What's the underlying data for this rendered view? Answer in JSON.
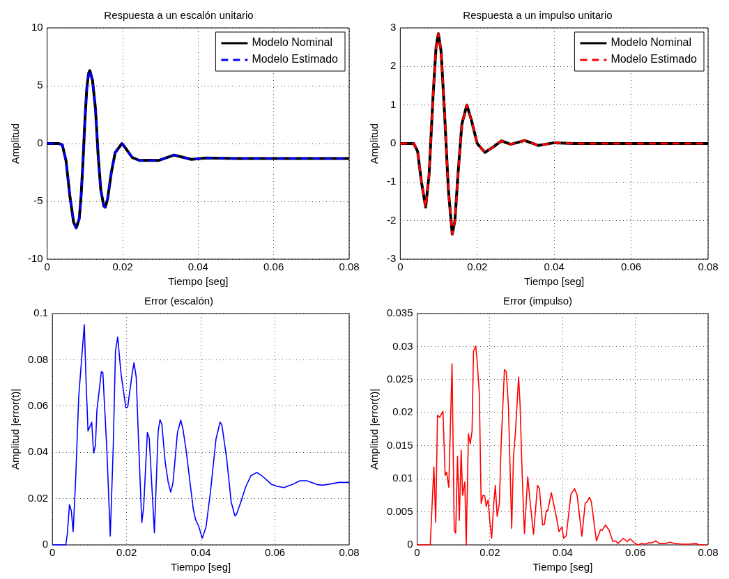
{
  "chart_data": [
    {
      "type": "line",
      "title": "Respuesta a un escalón unitario",
      "xlabel": "Tiempo [seg]",
      "ylabel": "Amplitud",
      "xlim": [
        0,
        0.08
      ],
      "ylim": [
        -10,
        10
      ],
      "xticks": [
        0,
        0.02,
        0.04,
        0.06,
        0.08
      ],
      "yticks": [
        -10,
        -5,
        0,
        5,
        10
      ],
      "grid": true,
      "legend": "top right",
      "x": [
        0,
        0.003,
        0.004,
        0.005,
        0.006,
        0.007,
        0.0077,
        0.0085,
        0.009,
        0.0095,
        0.01,
        0.0105,
        0.011,
        0.0113,
        0.012,
        0.0128,
        0.0135,
        0.0142,
        0.015,
        0.0154,
        0.016,
        0.017,
        0.018,
        0.0198,
        0.021,
        0.0225,
        0.0244,
        0.027,
        0.0296,
        0.0336,
        0.0382,
        0.042,
        0.05,
        0.06,
        0.08
      ],
      "series": [
        {
          "name": "Modelo Nominal",
          "color": "#000000",
          "line_style": "solid",
          "values": [
            0,
            0,
            -0.1,
            -1.5,
            -4.5,
            -6.8,
            -7.3,
            -6.5,
            -4.5,
            -1.5,
            2,
            4.8,
            6.1,
            6.3,
            5.5,
            3,
            -1,
            -4,
            -5.4,
            -5.5,
            -4.8,
            -2.5,
            -0.8,
            0,
            -0.5,
            -1.2,
            -1.46,
            -1.45,
            -1.46,
            -1.0,
            -1.37,
            -1.25,
            -1.3,
            -1.3,
            -1.3
          ]
        },
        {
          "name": "Modelo Estimado",
          "color": "#0000ff",
          "line_style": "dashed",
          "values": [
            0,
            0,
            -0.1,
            -1.5,
            -4.5,
            -6.8,
            -7.3,
            -6.5,
            -4.5,
            -1.5,
            2,
            4.8,
            6.1,
            6.3,
            5.5,
            3,
            -1,
            -4,
            -5.4,
            -5.5,
            -4.8,
            -2.5,
            -0.8,
            0,
            -0.5,
            -1.2,
            -1.46,
            -1.45,
            -1.46,
            -1.0,
            -1.37,
            -1.25,
            -1.3,
            -1.3,
            -1.3
          ]
        }
      ]
    },
    {
      "type": "line",
      "title": "Respuesta a un impulso unitario",
      "xlabel": "Tiempo [seg]",
      "ylabel": "Amplitud",
      "xlim": [
        0,
        0.08
      ],
      "ylim": [
        -3,
        3
      ],
      "xticks": [
        0,
        0.02,
        0.04,
        0.06,
        0.08
      ],
      "yticks": [
        -3,
        -2,
        -1,
        0,
        1,
        2,
        3
      ],
      "grid": true,
      "legend": "top right",
      "x": [
        0,
        0.0035,
        0.0045,
        0.0055,
        0.0066,
        0.0075,
        0.0085,
        0.0093,
        0.0099,
        0.0106,
        0.0115,
        0.0125,
        0.0135,
        0.0142,
        0.015,
        0.016,
        0.0173,
        0.0185,
        0.02,
        0.022,
        0.024,
        0.0263,
        0.0287,
        0.0323,
        0.0359,
        0.04,
        0.045,
        0.08
      ],
      "series": [
        {
          "name": "Modelo Nominal",
          "color": "#000000",
          "line_style": "solid",
          "values": [
            0,
            0,
            -0.2,
            -1.0,
            -1.65,
            -0.8,
            1.2,
            2.5,
            2.85,
            2.4,
            0.8,
            -1.2,
            -2.35,
            -2.0,
            -0.8,
            0.5,
            1.0,
            0.6,
            0,
            -0.23,
            -0.1,
            0.07,
            -0.02,
            0.08,
            -0.05,
            0.02,
            0,
            0
          ]
        },
        {
          "name": "Modelo Estimado",
          "color": "#ff0000",
          "line_style": "dashed",
          "values": [
            0,
            0,
            -0.2,
            -1.0,
            -1.65,
            -0.8,
            1.2,
            2.5,
            2.85,
            2.4,
            0.8,
            -1.2,
            -2.35,
            -2.0,
            -0.8,
            0.5,
            1.0,
            0.6,
            0,
            -0.23,
            -0.1,
            0.07,
            -0.02,
            0.08,
            -0.05,
            0.02,
            0,
            0
          ]
        }
      ]
    },
    {
      "type": "line",
      "title": "Error (escalón)",
      "xlabel": "Tiempo [seg]",
      "ylabel": "Amplitud |error(t)|",
      "xlim": [
        0,
        0.08
      ],
      "ylim": [
        0,
        0.1
      ],
      "xticks": [
        0,
        0.02,
        0.04,
        0.06,
        0.08
      ],
      "yticks": [
        0,
        0.02,
        0.04,
        0.06,
        0.08,
        0.1
      ],
      "grid": true,
      "x": [
        0,
        0.0036,
        0.004,
        0.0046,
        0.0051,
        0.0056,
        0.0063,
        0.0071,
        0.0086,
        0.0091,
        0.0096,
        0.0106,
        0.0111,
        0.0116,
        0.012,
        0.0132,
        0.0136,
        0.0147,
        0.0156,
        0.0164,
        0.017,
        0.0176,
        0.0185,
        0.0198,
        0.0203,
        0.0215,
        0.022,
        0.0226,
        0.0232,
        0.0241,
        0.0246,
        0.0256,
        0.0261,
        0.0275,
        0.0285,
        0.029,
        0.0295,
        0.0304,
        0.0312,
        0.0319,
        0.0325,
        0.0337,
        0.0346,
        0.0352,
        0.0361,
        0.037,
        0.038,
        0.0386,
        0.0394,
        0.0404,
        0.0414,
        0.0426,
        0.0441,
        0.0452,
        0.0457,
        0.047,
        0.0482,
        0.0492,
        0.0496,
        0.0508,
        0.0521,
        0.0535,
        0.0551,
        0.0562,
        0.0576,
        0.0591,
        0.0604,
        0.0624,
        0.0647,
        0.0667,
        0.0686,
        0.0713,
        0.0729,
        0.0752,
        0.0772,
        0.08
      ],
      "series": [
        {
          "color": "#0000ff",
          "line_style": "solid",
          "values": [
            0,
            0,
            0.0044,
            0.0174,
            0.0147,
            0.0057,
            0.0294,
            0.0642,
            0.0952,
            0.0696,
            0.0492,
            0.053,
            0.0397,
            0.043,
            0.0582,
            0.0749,
            0.0745,
            0.0403,
            0.0038,
            0.0424,
            0.0838,
            0.0898,
            0.074,
            0.0593,
            0.0596,
            0.074,
            0.0787,
            0.0724,
            0.0457,
            0.0096,
            0.0163,
            0.0486,
            0.0462,
            0.0052,
            0.049,
            0.0541,
            0.0522,
            0.0359,
            0.0272,
            0.0228,
            0.0267,
            0.0484,
            0.0539,
            0.05,
            0.0403,
            0.0283,
            0.0152,
            0.0109,
            0.0082,
            0.0029,
            0.0076,
            0.0228,
            0.0457,
            0.0531,
            0.0517,
            0.037,
            0.0185,
            0.0125,
            0.0131,
            0.0185,
            0.025,
            0.0299,
            0.0313,
            0.0302,
            0.0283,
            0.0261,
            0.0254,
            0.0248,
            0.0261,
            0.0277,
            0.0277,
            0.0261,
            0.0258,
            0.0264,
            0.027,
            0.027
          ]
        }
      ]
    },
    {
      "type": "line",
      "title": "Error (impulso)",
      "xlabel": "Tiempo [seg]",
      "ylabel": "Amplitud |error(t)|",
      "xlim": [
        0,
        0.08
      ],
      "ylim": [
        0,
        0.035
      ],
      "xticks": [
        0,
        0.02,
        0.04,
        0.06,
        0.08
      ],
      "yticks": [
        0,
        0.005,
        0.01,
        0.015,
        0.02,
        0.025,
        0.03,
        0.035
      ],
      "grid": true,
      "x": [
        0,
        0.0036,
        0.0046,
        0.0051,
        0.0056,
        0.0062,
        0.0071,
        0.0077,
        0.0081,
        0.0087,
        0.0096,
        0.0102,
        0.0106,
        0.0111,
        0.0116,
        0.0121,
        0.0125,
        0.0131,
        0.0135,
        0.0141,
        0.0146,
        0.0151,
        0.0155,
        0.0161,
        0.0165,
        0.0171,
        0.0176,
        0.0181,
        0.0186,
        0.019,
        0.0195,
        0.02,
        0.0205,
        0.021,
        0.0215,
        0.022,
        0.0226,
        0.0231,
        0.024,
        0.0245,
        0.0251,
        0.026,
        0.0265,
        0.027,
        0.0279,
        0.0283,
        0.0289,
        0.0295,
        0.0304,
        0.0312,
        0.032,
        0.0331,
        0.0336,
        0.0345,
        0.035,
        0.0355,
        0.0359,
        0.0369,
        0.0378,
        0.0384,
        0.039,
        0.0398,
        0.0403,
        0.041,
        0.0423,
        0.0433,
        0.044,
        0.0453,
        0.0462,
        0.0467,
        0.0474,
        0.0479,
        0.0493,
        0.0504,
        0.0509,
        0.0518,
        0.0528,
        0.0538,
        0.0546,
        0.0552,
        0.0559,
        0.0567,
        0.0577,
        0.0586,
        0.0597,
        0.0607,
        0.0617,
        0.0626,
        0.0636,
        0.0646,
        0.0656,
        0.0666,
        0.0682,
        0.0695,
        0.0708,
        0.0728,
        0.0748,
        0.0768,
        0.0774,
        0.0795
      ],
      "series": [
        {
          "color": "#ff0000",
          "line_style": "solid",
          "values": [
            0,
            0,
            0.0118,
            0.0034,
            0.0196,
            0.0193,
            0.0202,
            0.0105,
            0.011,
            0.0087,
            0.0274,
            0.0021,
            0.0018,
            0.0134,
            0.0037,
            0.0143,
            0.0075,
            0.0095,
            0,
            0.0168,
            0.0153,
            0.0172,
            0.0293,
            0.0301,
            0.0278,
            0.0229,
            0.0063,
            0.0075,
            0.0074,
            0.0058,
            0.0068,
            0.0035,
            0.001,
            0.0058,
            0.009,
            0.0043,
            0.0062,
            0.0153,
            0.0265,
            0.0262,
            0.021,
            0.0025,
            0.0134,
            0.0168,
            0.0254,
            0.0213,
            0.0103,
            0.0017,
            0.0103,
            0.0058,
            0.0016,
            0.009,
            0.0086,
            0.003,
            0.0031,
            0.0052,
            0.0051,
            0.0079,
            0.0055,
            0.0039,
            0.002,
            0.0027,
            0.001,
            0.0014,
            0.0077,
            0.0085,
            0.0075,
            0.0013,
            0.0063,
            0.0065,
            0.0072,
            0.0065,
            0.0006,
            0.0023,
            0.0022,
            0.003,
            0.0022,
            0.0005,
            0.0006,
            0.0002,
            0.0006,
            0.001,
            0.0005,
            0.0009,
            0.0003,
            0,
            0.0002,
            0.0001,
            0.0003,
            0.0003,
            0.0006,
            0.0002,
            0.0002,
            0.0004,
            0.0002,
            0.0001,
            0.0001,
            0.0002,
            0,
            0
          ]
        }
      ]
    }
  ]
}
